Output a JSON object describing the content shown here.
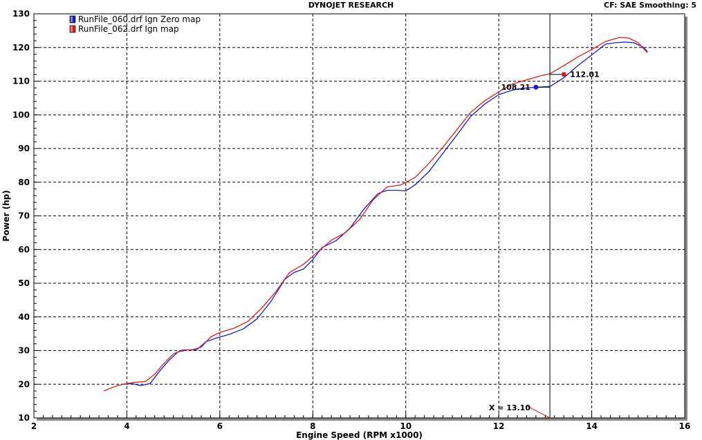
{
  "header": {
    "title": "DYNOJET RESEARCH",
    "cf_label": "CF: SAE  Smoothing: 5"
  },
  "colors": {
    "series1": "#1a1acc",
    "series2": "#dd1a1a",
    "grid": "#000000",
    "cursor": "#000000"
  },
  "chart_data": {
    "type": "line",
    "title": "DYNOJET RESEARCH",
    "xlabel": "Engine Speed (RPM x1000)",
    "ylabel": "Power (hp)",
    "xlim": [
      2,
      16
    ],
    "ylim": [
      10,
      130
    ],
    "xticks": [
      2,
      4,
      6,
      8,
      10,
      12,
      14,
      16
    ],
    "yticks": [
      10,
      20,
      30,
      40,
      50,
      60,
      70,
      80,
      90,
      100,
      110,
      120,
      130
    ],
    "grid": true,
    "legend_position": "top-left",
    "series": [
      {
        "name": "RunFile_060.drf Ign Zero map",
        "color": "#1a1acc",
        "x": [
          3.9,
          4.1,
          4.3,
          4.5,
          4.7,
          4.9,
          5.1,
          5.3,
          5.5,
          5.7,
          5.9,
          6.2,
          6.5,
          6.8,
          7.1,
          7.4,
          7.6,
          7.8,
          8.0,
          8.2,
          8.5,
          8.8,
          9.1,
          9.4,
          9.6,
          9.8,
          10.0,
          10.2,
          10.5,
          10.8,
          11.1,
          11.4,
          11.7,
          12.0,
          12.3,
          12.6,
          12.8,
          13.1,
          13.4,
          13.7,
          14.0,
          14.3,
          14.5,
          14.7,
          14.9,
          15.1,
          15.2
        ],
        "values": [
          20.0,
          20.2,
          19.6,
          20.2,
          23.8,
          27.0,
          29.6,
          30.2,
          30.2,
          32.6,
          33.6,
          34.8,
          36.4,
          39.4,
          44.6,
          51.2,
          53.2,
          54.2,
          57.0,
          60.6,
          62.6,
          66.4,
          72.0,
          76.6,
          77.6,
          77.6,
          77.4,
          79.2,
          83.2,
          88.6,
          94.0,
          99.6,
          103.2,
          106.0,
          107.4,
          108.0,
          108.2,
          108.4,
          111.0,
          114.6,
          117.8,
          121.0,
          121.4,
          121.6,
          121.4,
          120.2,
          118.8
        ]
      },
      {
        "name": "RunFile_062.drf Ign map",
        "color": "#dd1a1a",
        "x": [
          3.5,
          3.8,
          4.0,
          4.2,
          4.4,
          4.6,
          4.8,
          5.0,
          5.2,
          5.4,
          5.6,
          5.8,
          6.0,
          6.3,
          6.6,
          6.9,
          7.2,
          7.5,
          7.8,
          8.1,
          8.4,
          8.7,
          9.0,
          9.3,
          9.6,
          9.9,
          10.2,
          10.5,
          10.8,
          11.1,
          11.4,
          11.7,
          12.0,
          12.3,
          12.6,
          12.9,
          13.1,
          13.4,
          13.7,
          14.0,
          14.3,
          14.6,
          14.8,
          15.0,
          15.2
        ],
        "values": [
          18.0,
          19.6,
          20.2,
          20.6,
          20.8,
          23.0,
          26.2,
          29.0,
          30.2,
          30.2,
          31.0,
          34.0,
          35.4,
          36.6,
          38.6,
          42.6,
          47.4,
          53.2,
          55.6,
          59.2,
          62.8,
          65.0,
          68.8,
          74.8,
          78.6,
          79.2,
          81.4,
          85.6,
          90.4,
          95.6,
          100.8,
          104.2,
          106.8,
          109.2,
          110.4,
          111.6,
          112.2,
          114.6,
          117.2,
          119.4,
          121.8,
          123.0,
          122.8,
          121.4,
          118.4
        ]
      }
    ],
    "cursor": {
      "x": 13.1,
      "label": "X = 13.10",
      "readouts": [
        {
          "series": "RunFile_060.drf Ign Zero map",
          "value": "108.21",
          "y": 108.21,
          "marker_x": 12.8
        },
        {
          "series": "RunFile_062.drf Ign map",
          "value": "112.01",
          "y": 112.01,
          "marker_x": 13.4
        }
      ]
    }
  }
}
